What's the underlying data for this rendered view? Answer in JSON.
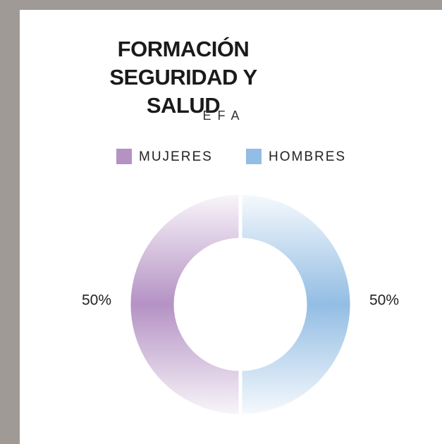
{
  "chart_data": {
    "type": "donut",
    "title": "FORMACIÓN SEGURIDAD Y SALUD",
    "subtitle": "EFA",
    "categories": [
      "MUJERES",
      "HOMBRES"
    ],
    "values": [
      50,
      50
    ],
    "value_labels": [
      "50%",
      "50%"
    ],
    "colors": [
      "#b592c4",
      "#93bde4"
    ],
    "legend": "top"
  }
}
